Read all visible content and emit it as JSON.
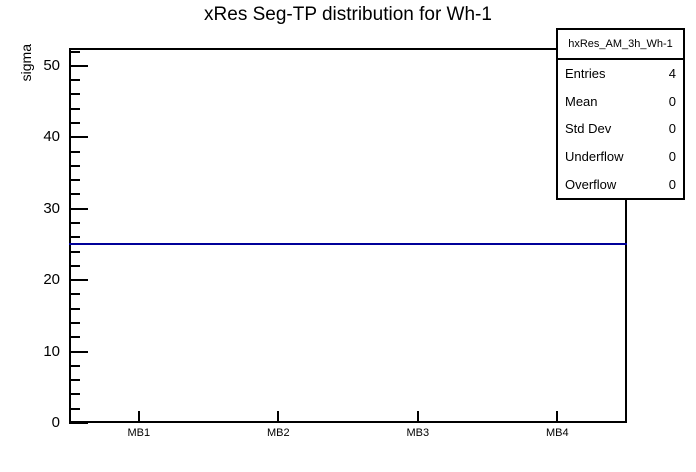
{
  "title": "xRes Seg-TP distribution for Wh-1",
  "axes": {
    "ylabel": "sigma",
    "x_tick_labels": [
      "MB1",
      "MB2",
      "MB3",
      "MB4"
    ],
    "y_tick_labels": [
      "0",
      "10",
      "20",
      "30",
      "40",
      "50"
    ]
  },
  "stats_box": {
    "header": "hxRes_AM_3h_Wh-1",
    "rows": [
      {
        "label": "Entries",
        "value": "4"
      },
      {
        "label": "Mean",
        "value": "0"
      },
      {
        "label": "Std Dev",
        "value": "0"
      },
      {
        "label": "Underflow",
        "value": "0"
      },
      {
        "label": "Overflow",
        "value": "0"
      }
    ]
  },
  "chart_data": {
    "type": "line",
    "subtype": "root-histogram-step",
    "title": "xRes Seg-TP distribution for Wh-1",
    "xlabel": "",
    "ylabel": "sigma",
    "categories": [
      "MB1",
      "MB2",
      "MB3",
      "MB4"
    ],
    "values": [
      25,
      25,
      25,
      25
    ],
    "ylim": [
      0,
      52.5
    ],
    "y_major_ticks": [
      0,
      10,
      20,
      30,
      40,
      50
    ],
    "y_minor_step": 2,
    "grid": false,
    "legend_position": "none",
    "stats": {
      "entries": 4,
      "mean": 0,
      "std_dev": 0,
      "underflow": 0,
      "overflow": 0
    }
  },
  "colors": {
    "series_line": "#000099",
    "frame_line": "#000000",
    "background": "#ffffff",
    "text": "#000000"
  }
}
